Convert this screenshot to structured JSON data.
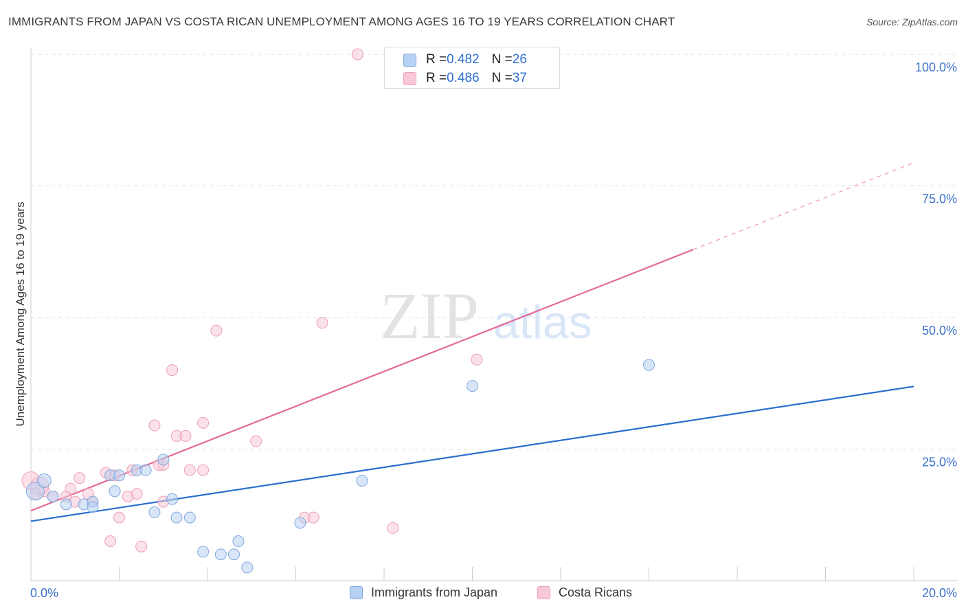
{
  "header": {
    "title": "IMMIGRANTS FROM JAPAN VS COSTA RICAN UNEMPLOYMENT AMONG AGES 16 TO 19 YEARS CORRELATION CHART",
    "source": "Source: ZipAtlas.com"
  },
  "watermark": {
    "zip": "ZIP",
    "atlas": "atlas"
  },
  "legend": {
    "series1": {
      "r_label": "R = ",
      "r_value": "0.482",
      "n_label": "N = ",
      "n_value": "26"
    },
    "series2": {
      "r_label": "R = ",
      "r_value": "0.486",
      "n_label": "N = ",
      "n_value": "37"
    }
  },
  "colors": {
    "blue_fill": "#b8d1f3",
    "blue_stroke": "#7fa8de",
    "blue_line": "#2a6fcd",
    "pink_fill": "#f8c8d6",
    "pink_stroke": "#eca0b8",
    "pink_line": "#e46a94",
    "tick_label": "#3d72c9",
    "grid": "#dddddd"
  },
  "chart_data": {
    "type": "scatter",
    "title": "IMMIGRANTS FROM JAPAN VS COSTA RICAN UNEMPLOYMENT AMONG AGES 16 TO 19 YEARS CORRELATION CHART",
    "xlabel": "",
    "ylabel": "Unemployment Among Ages 16 to 19 years",
    "xlim": [
      0,
      20
    ],
    "ylim": [
      0,
      100
    ],
    "x_tick_labels": [
      "0.0%",
      "20.0%"
    ],
    "y_ticks": [
      25,
      50,
      75,
      100
    ],
    "y_tick_labels": [
      "25.0%",
      "50.0%",
      "75.0%",
      "100.0%"
    ],
    "grid": true,
    "series": [
      {
        "name": "Immigrants from Japan",
        "r": 0.482,
        "n": 26,
        "points": [
          [
            0.1,
            17.0
          ],
          [
            0.3,
            19.0
          ],
          [
            0.8,
            14.5
          ],
          [
            1.2,
            14.5
          ],
          [
            1.4,
            15.0
          ],
          [
            1.4,
            14.0
          ],
          [
            1.8,
            20.0
          ],
          [
            1.9,
            17.0
          ],
          [
            2.0,
            20.0
          ],
          [
            2.4,
            21.0
          ],
          [
            2.6,
            21.0
          ],
          [
            2.8,
            13.0
          ],
          [
            3.0,
            23.0
          ],
          [
            3.2,
            15.5
          ],
          [
            3.3,
            12.0
          ],
          [
            3.6,
            12.0
          ],
          [
            3.9,
            5.5
          ],
          [
            4.3,
            5.0
          ],
          [
            4.6,
            5.0
          ],
          [
            4.7,
            7.5
          ],
          [
            4.9,
            2.5
          ],
          [
            6.1,
            11.0
          ],
          [
            7.5,
            19.0
          ],
          [
            10.0,
            37.0
          ],
          [
            14.0,
            41.0
          ],
          [
            0.5,
            16.0
          ]
        ],
        "trend": {
          "x": [
            0,
            20
          ],
          "y": [
            11.3,
            36.9
          ]
        }
      },
      {
        "name": "Costa Ricans",
        "r": 0.486,
        "n": 37,
        "points": [
          [
            0.0,
            19.0
          ],
          [
            0.1,
            16.5
          ],
          [
            0.3,
            17.0
          ],
          [
            0.5,
            16.0
          ],
          [
            0.8,
            16.0
          ],
          [
            0.9,
            17.5
          ],
          [
            1.0,
            15.0
          ],
          [
            1.1,
            19.5
          ],
          [
            1.3,
            16.5
          ],
          [
            1.4,
            15.0
          ],
          [
            1.7,
            20.5
          ],
          [
            1.8,
            7.5
          ],
          [
            1.9,
            20.0
          ],
          [
            2.0,
            12.0
          ],
          [
            2.2,
            16.0
          ],
          [
            2.3,
            21.0
          ],
          [
            2.4,
            16.5
          ],
          [
            2.5,
            6.5
          ],
          [
            2.8,
            29.5
          ],
          [
            3.0,
            22.0
          ],
          [
            3.0,
            15.0
          ],
          [
            3.2,
            40.0
          ],
          [
            3.3,
            27.5
          ],
          [
            3.5,
            27.5
          ],
          [
            3.6,
            21.0
          ],
          [
            3.9,
            21.0
          ],
          [
            3.9,
            30.0
          ],
          [
            4.2,
            47.5
          ],
          [
            5.1,
            26.5
          ],
          [
            6.2,
            12.0
          ],
          [
            6.4,
            12.0
          ],
          [
            6.6,
            49.0
          ],
          [
            7.4,
            100.0
          ],
          [
            8.2,
            10.0
          ],
          [
            10.1,
            42.0
          ],
          [
            2.9,
            22.0
          ],
          [
            0.2,
            18.0
          ]
        ],
        "trend": {
          "x": [
            0,
            15
          ],
          "y": [
            13.3,
            62.9
          ],
          "dashed_to": {
            "x": 20,
            "y": 79.4
          }
        }
      }
    ]
  },
  "bottom_legend": {
    "item1": "Immigrants from Japan",
    "item2": "Costa Ricans"
  }
}
